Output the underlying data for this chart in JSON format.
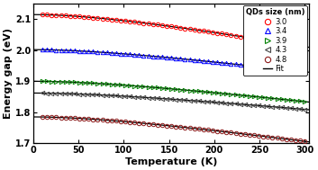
{
  "title": "",
  "xlabel": "Temperature (K)",
  "ylabel": "Energy gap (eV)",
  "xlim": [
    0,
    305
  ],
  "ylim": [
    1.7,
    2.15
  ],
  "yticks": [
    1.7,
    1.8,
    1.9,
    2.0,
    2.1
  ],
  "xticks": [
    0,
    50,
    100,
    150,
    200,
    250,
    300
  ],
  "legend_title": "QDs size (nm)",
  "background_color": "#ffffff",
  "series": [
    {
      "label": "3.0",
      "color": "red",
      "marker": "o",
      "E0": 2.115,
      "alpha": 0.00055,
      "beta": 180
    },
    {
      "label": "3.4",
      "color": "blue",
      "marker": "^",
      "E0": 2.002,
      "alpha": 0.00038,
      "beta": 180
    },
    {
      "label": "3.9",
      "color": "green",
      "marker": ">",
      "E0": 1.9,
      "alpha": 0.00035,
      "beta": 180
    },
    {
      "label": "4.3",
      "color": "#444444",
      "marker": "<",
      "E0": 1.862,
      "alpha": 0.00028,
      "beta": 180
    },
    {
      "label": "4.8",
      "color": "#8B1A1A",
      "marker": "o",
      "E0": 1.785,
      "alpha": 0.00042,
      "beta": 180
    }
  ]
}
